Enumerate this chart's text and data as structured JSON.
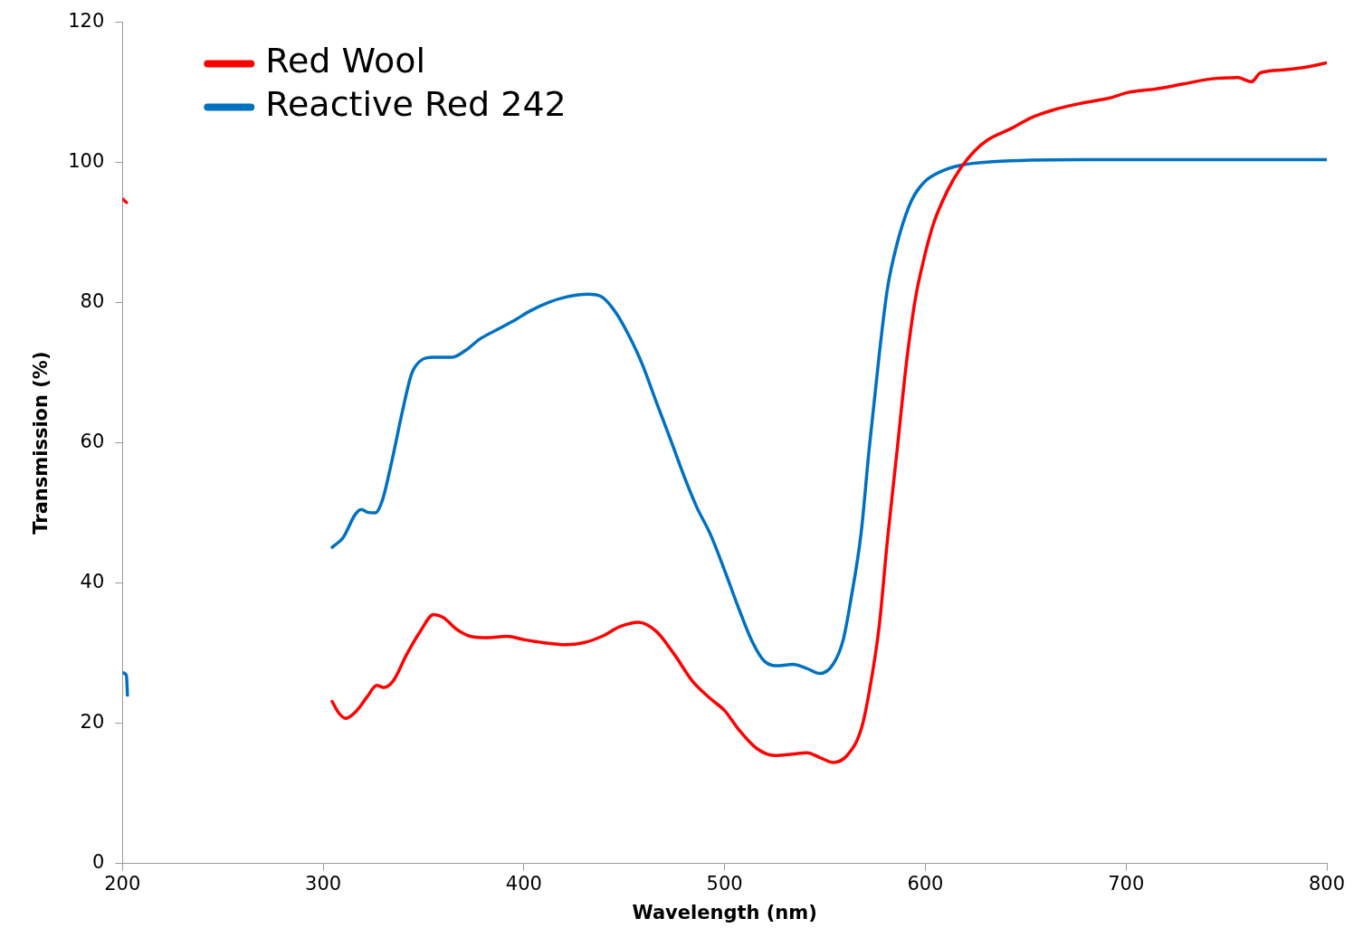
{
  "chart_data": {
    "type": "line",
    "xlabel": "Wavelength (nm)",
    "ylabel": "Transmission (%)",
    "xlim": [
      200,
      800
    ],
    "xticks": [
      200,
      300,
      400,
      500,
      600,
      700,
      800
    ],
    "ylim": [
      0,
      120
    ],
    "yticks": [
      0,
      20,
      40,
      60,
      80,
      100,
      120
    ],
    "grid": false,
    "legend": "top left",
    "marker": "none",
    "line_style": "solid",
    "series": [
      {
        "name": "Red Wool",
        "color": "#ff0000",
        "x": [
          200,
          202,
          203,
          304.5,
          307.7,
          311.3,
          316.7,
          322,
          326.7,
          330,
          334.8,
          341.6,
          348.4,
          355,
          359.7,
          366.5,
          373.3,
          382.4,
          391.4,
          400.5,
          409.5,
          420.8,
          429.9,
          438.9,
          448,
          457,
          466,
          475,
          484,
          493,
          500,
          507,
          516,
          525,
          534,
          541,
          547.5,
          554,
          561,
          568,
          572,
          577,
          581,
          586,
          590.5,
          595,
          599.5,
          604,
          610.9,
          617.6,
          624.4,
          631,
          642.5,
          653.8,
          665,
          678.7,
          692,
          701,
          715,
          728.5,
          742,
          755.7,
          762.4,
          767,
          778.3,
          787.3,
          800
        ],
        "values": [
          94.8,
          94.3,
          null,
          23.1,
          21.5,
          20.7,
          21.8,
          23.8,
          25.4,
          25.1,
          26,
          29.8,
          33.1,
          35.5,
          35.1,
          33.4,
          32.4,
          32.2,
          32.4,
          31.9,
          31.5,
          31.2,
          31.5,
          32.4,
          33.8,
          34.4,
          33.1,
          29.8,
          26,
          23.5,
          21.8,
          19.1,
          16.4,
          15.4,
          15.6,
          15.8,
          15.1,
          14.4,
          15.4,
          19.1,
          24.4,
          33.8,
          45.8,
          59.1,
          71.2,
          80.5,
          86.5,
          91.2,
          95.9,
          99.2,
          101.6,
          103.2,
          104.8,
          106.5,
          107.6,
          108.5,
          109.2,
          110,
          110.5,
          111.2,
          111.9,
          112.1,
          111.5,
          112.8,
          113.2,
          113.5,
          114.2
        ]
      },
      {
        "name": "Reactive Red 242",
        "color": "#0070c0",
        "x": [
          200,
          202,
          202.5,
          203,
          304.5,
          310,
          316,
          319,
          322,
          326,
          329.5,
          334,
          339.5,
          344,
          348,
          355,
          364,
          371,
          378,
          387,
          396,
          403,
          412,
          421,
          432,
          439,
          446,
          452.5,
          459,
          466,
          473,
          480,
          486,
          493,
          500,
          507,
          513.5,
          520,
          527,
          534,
          541,
          547.5,
          554,
          559,
          563,
          568,
          572,
          577,
          581,
          586,
          593,
          599.5,
          608.6,
          617.6,
          633.5,
          678.7,
          724,
          769,
          800
        ],
        "values": [
          27.2,
          26.8,
          24,
          null,
          45.1,
          46.5,
          49.8,
          50.5,
          50.1,
          50,
          51.8,
          57.1,
          64.5,
          69.8,
          71.6,
          72.2,
          72.2,
          73.2,
          74.8,
          76.2,
          77.6,
          78.8,
          80,
          80.8,
          81.2,
          80.8,
          78.5,
          75.2,
          71.2,
          65.8,
          60.5,
          55.1,
          50.9,
          46.9,
          41.8,
          36.4,
          31.8,
          28.8,
          28.2,
          28.4,
          27.8,
          27.1,
          28.4,
          31.8,
          37.8,
          47.1,
          59.1,
          72.5,
          81.8,
          88.5,
          94.5,
          97.2,
          98.8,
          99.6,
          100.1,
          100.4,
          100.4,
          100.4,
          100.4
        ]
      }
    ]
  }
}
